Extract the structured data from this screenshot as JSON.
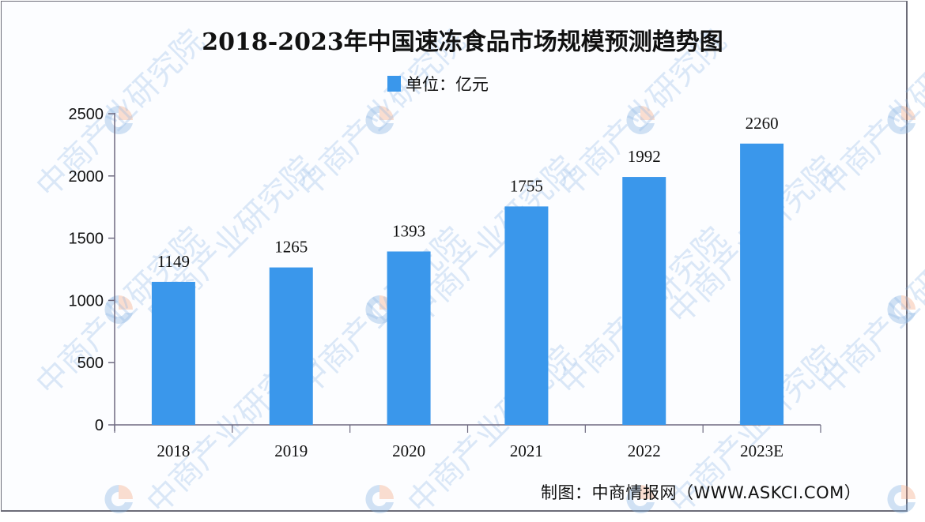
{
  "title": "2018-2023年中国速冻食品市场规模预测趋势图",
  "legend": {
    "label": "单位：亿元",
    "color": "#3a97eb"
  },
  "source": "制图：中商情报网（WWW.ASKCI.COM）",
  "watermark": "中商产业研究院",
  "chart_data": {
    "type": "bar",
    "title": "2018-2023年中国速冻食品市场规模预测趋势图",
    "xlabel": "",
    "ylabel": "",
    "unit": "亿元",
    "categories": [
      "2018",
      "2019",
      "2020",
      "2021",
      "2022",
      "2023E"
    ],
    "series": [
      {
        "name": "单位：亿元",
        "values": [
          1149,
          1265,
          1393,
          1755,
          1992,
          2260
        ],
        "color": "#3a97eb"
      }
    ],
    "ylim": [
      0,
      2500
    ],
    "yticks": [
      "0",
      "500",
      "1000",
      "1500",
      "2000",
      "2500"
    ],
    "grid": false,
    "legend_position": "top-center",
    "data_labels": [
      "1149",
      "1265",
      "1393",
      "1755",
      "1992",
      "2260"
    ]
  }
}
